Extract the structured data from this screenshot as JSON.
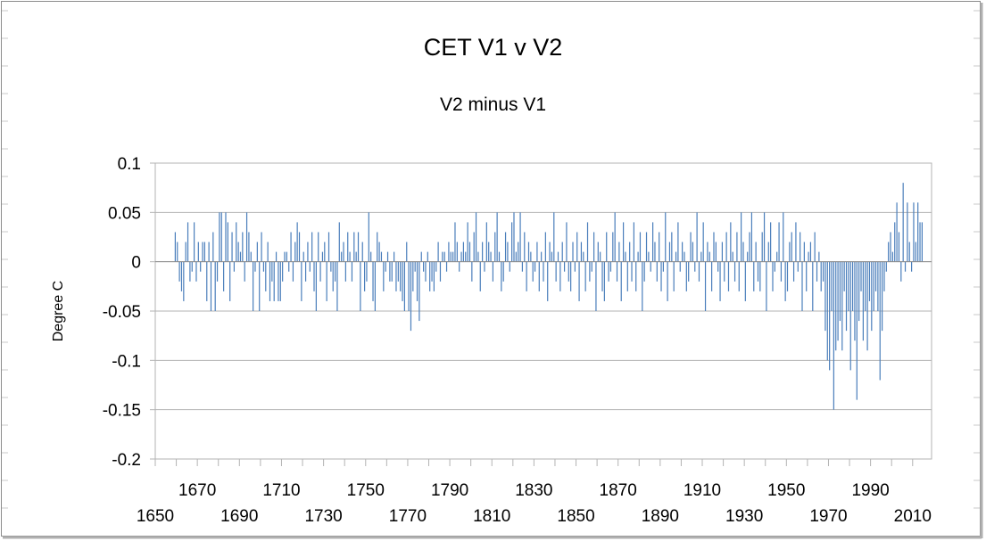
{
  "chart_data": {
    "type": "bar",
    "title": "CET V1 v V2",
    "subtitle": "V2 minus V1",
    "ylabel": "Degree C",
    "xlabel": "",
    "ylim": [
      -0.2,
      0.1
    ],
    "xlim": [
      1650,
      2019
    ],
    "y_ticks": [
      "0.1",
      "0.05",
      "0",
      "-0.05",
      "-0.1",
      "-0.15",
      "-0.2"
    ],
    "y_tick_values": [
      0.1,
      0.05,
      0,
      -0.05,
      -0.1,
      -0.15,
      -0.2
    ],
    "x_ticks_upper": [
      "1670",
      "1710",
      "1750",
      "1790",
      "1830",
      "1870",
      "1910",
      "1950",
      "1990"
    ],
    "x_ticks_lower": [
      "1650",
      "1690",
      "1730",
      "1770",
      "1810",
      "1850",
      "1890",
      "1930",
      "1970",
      "2010"
    ],
    "series": [
      {
        "name": "V2 minus V1",
        "color": "#4a7ebb",
        "start_year": 1659,
        "values": [
          0.03,
          0.02,
          -0.02,
          -0.03,
          -0.04,
          0.02,
          0.04,
          -0.02,
          -0.01,
          0.04,
          -0.02,
          0.02,
          -0.01,
          0.02,
          0.02,
          -0.04,
          0.02,
          -0.05,
          0.03,
          -0.05,
          -0.02,
          0.05,
          0.05,
          -0.03,
          0.05,
          0.04,
          -0.04,
          0.03,
          -0.01,
          0.04,
          0.02,
          0.01,
          0.03,
          -0.02,
          0.05,
          0.03,
          0.01,
          -0.05,
          -0.01,
          0.02,
          -0.05,
          0.03,
          -0.01,
          -0.03,
          0.02,
          -0.04,
          -0.02,
          -0.04,
          0.01,
          -0.04,
          -0.04,
          -0.02,
          0.01,
          0.01,
          -0.01,
          0.03,
          -0.02,
          0.02,
          0.04,
          0.03,
          -0.04,
          0.01,
          -0.02,
          0.02,
          -0.01,
          0.03,
          -0.03,
          -0.05,
          0.03,
          -0.02,
          0.01,
          0.02,
          -0.04,
          0.03,
          -0.01,
          -0.03,
          -0.02,
          -0.05,
          0.04,
          0.01,
          0.02,
          -0.02,
          0.03,
          0.01,
          -0.02,
          0.03,
          0.01,
          0.03,
          -0.05,
          0.02,
          -0.03,
          -0.02,
          0.05,
          0.01,
          -0.04,
          -0.05,
          0.03,
          0.02,
          0.01,
          -0.03,
          -0.01,
          0.01,
          -0.02,
          -0.02,
          0.01,
          -0.03,
          -0.02,
          -0.03,
          -0.04,
          -0.05,
          0.02,
          -0.05,
          -0.07,
          -0.03,
          -0.01,
          -0.04,
          -0.06,
          0.01,
          -0.01,
          -0.02,
          0.01,
          -0.03,
          -0.02,
          -0.03,
          -0.01,
          0.02,
          -0.02,
          0.01,
          0.01,
          -0.01,
          0.02,
          0.01,
          0.01,
          0.04,
          0.02,
          -0.01,
          0.01,
          0.02,
          0.01,
          0.04,
          0.02,
          -0.02,
          0.03,
          0.05,
          0.01,
          -0.03,
          0.02,
          -0.01,
          0.04,
          0.02,
          0.01,
          -0.02,
          0.03,
          0.05,
          0.01,
          -0.03,
          -0.02,
          0.03,
          0.02,
          -0.01,
          0.04,
          0.05,
          0.01,
          0.02,
          0.05,
          -0.01,
          0.03,
          -0.03,
          0.02,
          0.01,
          -0.02,
          -0.01,
          0.02,
          -0.03,
          0.01,
          -0.02,
          0.03,
          -0.04,
          0.02,
          0.01,
          0.05,
          -0.02,
          0.01,
          -0.03,
          0.02,
          -0.01,
          0.04,
          -0.02,
          -0.03,
          0.02,
          -0.01,
          0.03,
          -0.04,
          0.02,
          0.01,
          -0.03,
          0.04,
          -0.02,
          -0.01,
          0.03,
          -0.05,
          0.02,
          0.01,
          -0.03,
          -0.04,
          0.03,
          -0.02,
          -0.01,
          0.03,
          0.05,
          -0.02,
          0.02,
          -0.04,
          0.04,
          0.01,
          -0.03,
          0.02,
          -0.02,
          0.04,
          -0.03,
          0.01,
          0.03,
          -0.05,
          -0.02,
          0.03,
          0.01,
          -0.01,
          0.04,
          0.02,
          -0.02,
          0.03,
          -0.03,
          -0.01,
          0.05,
          -0.04,
          0.02,
          0.03,
          -0.03,
          0.01,
          0.04,
          -0.01,
          0.02,
          0.01,
          -0.03,
          -0.02,
          0.03,
          0.02,
          -0.01,
          0.05,
          -0.02,
          0.01,
          0.04,
          -0.05,
          0.02,
          0.01,
          -0.03,
          0.03,
          0.02,
          -0.01,
          -0.04,
          0.02,
          -0.02,
          0.03,
          -0.03,
          0.04,
          0.01,
          -0.02,
          0.03,
          -0.03,
          0.05,
          0.02,
          -0.04,
          0.01,
          0.03,
          0.05,
          -0.03,
          0.02,
          -0.02,
          -0.03,
          0.03,
          0.05,
          -0.05,
          0.02,
          0.04,
          -0.03,
          -0.01,
          0.01,
          0.04,
          -0.02,
          0.05,
          -0.04,
          -0.03,
          0.02,
          0.03,
          -0.02,
          0.04,
          -0.01,
          0.03,
          -0.05,
          0.02,
          -0.03,
          0.01,
          0.02,
          -0.05,
          0.03,
          -0.02,
          0.01,
          -0.03,
          -0.02,
          -0.07,
          -0.1,
          -0.11,
          -0.05,
          -0.15,
          -0.09,
          -0.08,
          -0.06,
          -0.09,
          -0.03,
          -0.07,
          -0.05,
          -0.11,
          -0.05,
          -0.08,
          -0.14,
          -0.06,
          -0.03,
          -0.08,
          -0.05,
          -0.09,
          -0.04,
          -0.07,
          -0.05,
          -0.03,
          -0.05,
          -0.12,
          -0.07,
          -0.03,
          -0.01,
          0.02,
          0.03,
          0.01,
          0.04,
          0.06,
          0.03,
          -0.02,
          0.08,
          -0.01,
          0.06,
          0.02,
          -0.01,
          0.06,
          0.02,
          0.06,
          0.04,
          0.04
        ]
      }
    ]
  }
}
